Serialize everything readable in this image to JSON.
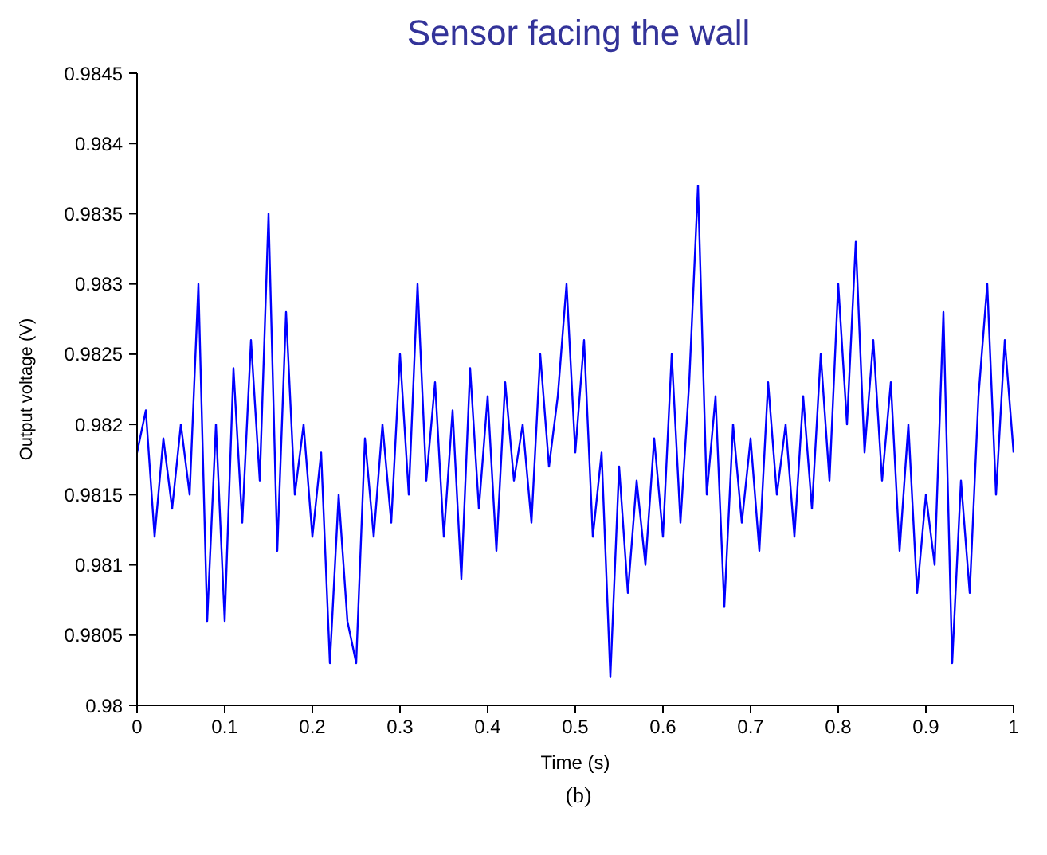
{
  "chart_data": {
    "type": "line",
    "title": "Sensor facing the wall",
    "xlabel": "Time (s)",
    "ylabel": "Output voltage (V)",
    "annotations": [
      "(b)"
    ],
    "x": [
      0,
      0.01,
      0.02,
      0.03,
      0.04,
      0.05,
      0.06,
      0.07,
      0.08,
      0.09,
      0.1,
      0.11,
      0.12,
      0.13,
      0.14,
      0.15,
      0.16,
      0.17,
      0.18,
      0.19,
      0.2,
      0.21,
      0.22,
      0.23,
      0.24,
      0.25,
      0.26,
      0.27,
      0.28,
      0.29,
      0.3,
      0.31,
      0.32,
      0.33,
      0.34,
      0.35,
      0.36,
      0.37,
      0.38,
      0.39,
      0.4,
      0.41,
      0.42,
      0.43,
      0.44,
      0.45,
      0.46,
      0.47,
      0.48,
      0.49,
      0.5,
      0.51,
      0.52,
      0.53,
      0.54,
      0.55,
      0.56,
      0.57,
      0.58,
      0.59,
      0.6,
      0.61,
      0.62,
      0.63,
      0.64,
      0.65,
      0.66,
      0.67,
      0.68,
      0.69,
      0.7,
      0.71,
      0.72,
      0.73,
      0.74,
      0.75,
      0.76,
      0.77,
      0.78,
      0.79,
      0.8,
      0.81,
      0.82,
      0.83,
      0.84,
      0.85,
      0.86,
      0.87,
      0.88,
      0.89,
      0.9,
      0.91,
      0.92,
      0.93,
      0.94,
      0.95,
      0.96,
      0.97,
      0.98,
      0.99,
      1
    ],
    "series": [
      {
        "color": "#0000ff",
        "values": [
          0.9818,
          0.9821,
          0.9812,
          0.9819,
          0.9814,
          0.982,
          0.9815,
          0.983,
          0.9806,
          0.982,
          0.9806,
          0.9824,
          0.9813,
          0.9826,
          0.9816,
          0.9835,
          0.9811,
          0.9828,
          0.9815,
          0.982,
          0.9812,
          0.9818,
          0.9803,
          0.9815,
          0.9806,
          0.9803,
          0.9819,
          0.9812,
          0.982,
          0.9813,
          0.9825,
          0.9815,
          0.983,
          0.9816,
          0.9823,
          0.9812,
          0.9821,
          0.9809,
          0.9824,
          0.9814,
          0.9822,
          0.9811,
          0.9823,
          0.9816,
          0.982,
          0.9813,
          0.9825,
          0.9817,
          0.9822,
          0.983,
          0.9818,
          0.9826,
          0.9812,
          0.9818,
          0.9802,
          0.9817,
          0.9808,
          0.9816,
          0.981,
          0.9819,
          0.9812,
          0.9825,
          0.9813,
          0.9823,
          0.9837,
          0.9815,
          0.9822,
          0.9807,
          0.982,
          0.9813,
          0.9819,
          0.9811,
          0.9823,
          0.9815,
          0.982,
          0.9812,
          0.9822,
          0.9814,
          0.9825,
          0.9816,
          0.983,
          0.982,
          0.9833,
          0.9818,
          0.9826,
          0.9816,
          0.9823,
          0.9811,
          0.982,
          0.9808,
          0.9815,
          0.981,
          0.9828,
          0.9803,
          0.9816,
          0.9808,
          0.9822,
          0.983,
          0.9815,
          0.9826,
          0.9818
        ]
      }
    ],
    "xlim": [
      0,
      1
    ],
    "xticks": [
      0,
      0.1,
      0.2,
      0.3,
      0.4,
      0.5,
      0.6,
      0.7,
      0.8,
      0.9,
      1
    ],
    "ylim": [
      0.98,
      0.9845
    ],
    "yticks": [
      0.98,
      0.9805,
      0.981,
      0.9815,
      0.982,
      0.9825,
      0.983,
      0.9835,
      0.984,
      0.9845
    ],
    "grid": false,
    "legend": false,
    "marker": "none",
    "line_style": "solid"
  }
}
